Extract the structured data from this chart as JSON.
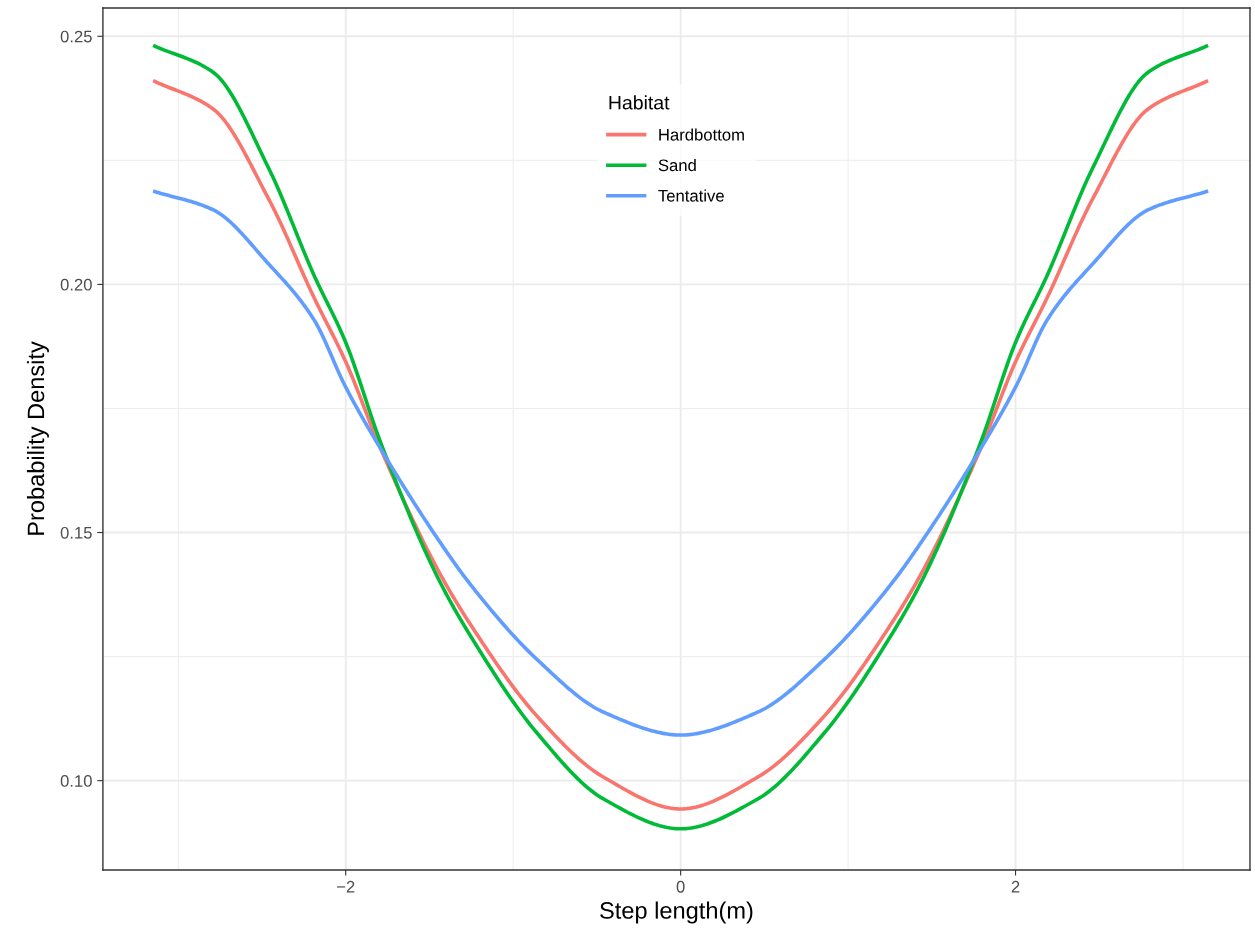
{
  "chart_data": {
    "type": "line",
    "xlabel": "Step length(m)",
    "ylabel": "Probability Density",
    "legend_title": "Habitat",
    "x": [
      -3.14,
      -2.79,
      -2.46,
      -2.19,
      -2.0,
      -1.79,
      -1.45,
      -1.25,
      -0.86,
      -0.46,
      0,
      0.46,
      0.86,
      1.25,
      1.45,
      1.79,
      2.0,
      2.19,
      2.46,
      2.79,
      3.14
    ],
    "series": [
      {
        "name": "Hardbottom",
        "color": "#f8766d",
        "values": [
          0.2409,
          0.2353,
          0.2172,
          0.1974,
          0.1844,
          0.1668,
          0.1425,
          0.1312,
          0.1131,
          0.1007,
          0.0943,
          0.1007,
          0.1131,
          0.1312,
          0.1425,
          0.1668,
          0.1844,
          0.1974,
          0.2172,
          0.2353,
          0.2409
        ]
      },
      {
        "name": "Sand",
        "color": "#00ba38",
        "values": [
          0.248,
          0.2427,
          0.2234,
          0.2019,
          0.1883,
          0.168,
          0.1409,
          0.1289,
          0.1097,
          0.0963,
          0.0903,
          0.0963,
          0.1097,
          0.1289,
          0.1409,
          0.168,
          0.1883,
          0.2019,
          0.2234,
          0.2427,
          0.248
        ]
      },
      {
        "name": "Tentative",
        "color": "#619cff",
        "values": [
          0.2187,
          0.215,
          0.2041,
          0.1929,
          0.1793,
          0.1668,
          0.1487,
          0.1393,
          0.1245,
          0.1138,
          0.1092,
          0.1138,
          0.1245,
          0.1393,
          0.1487,
          0.1668,
          0.1793,
          0.1929,
          0.2041,
          0.215,
          0.2187
        ]
      }
    ],
    "xlim": [
      -3.45,
      3.4
    ],
    "ylim": [
      0.082,
      0.2557
    ],
    "xticks": [
      {
        "value": -2,
        "label": "−2"
      },
      0,
      2
    ],
    "yticks": [
      {
        "value": 0.1,
        "label": "0.10"
      },
      {
        "value": 0.15,
        "label": "0.15"
      },
      {
        "value": 0.2,
        "label": "0.20"
      },
      {
        "value": 0.25,
        "label": "0.25"
      }
    ],
    "grid": true,
    "legend": "top",
    "marker": "none",
    "line_style": "solid"
  }
}
